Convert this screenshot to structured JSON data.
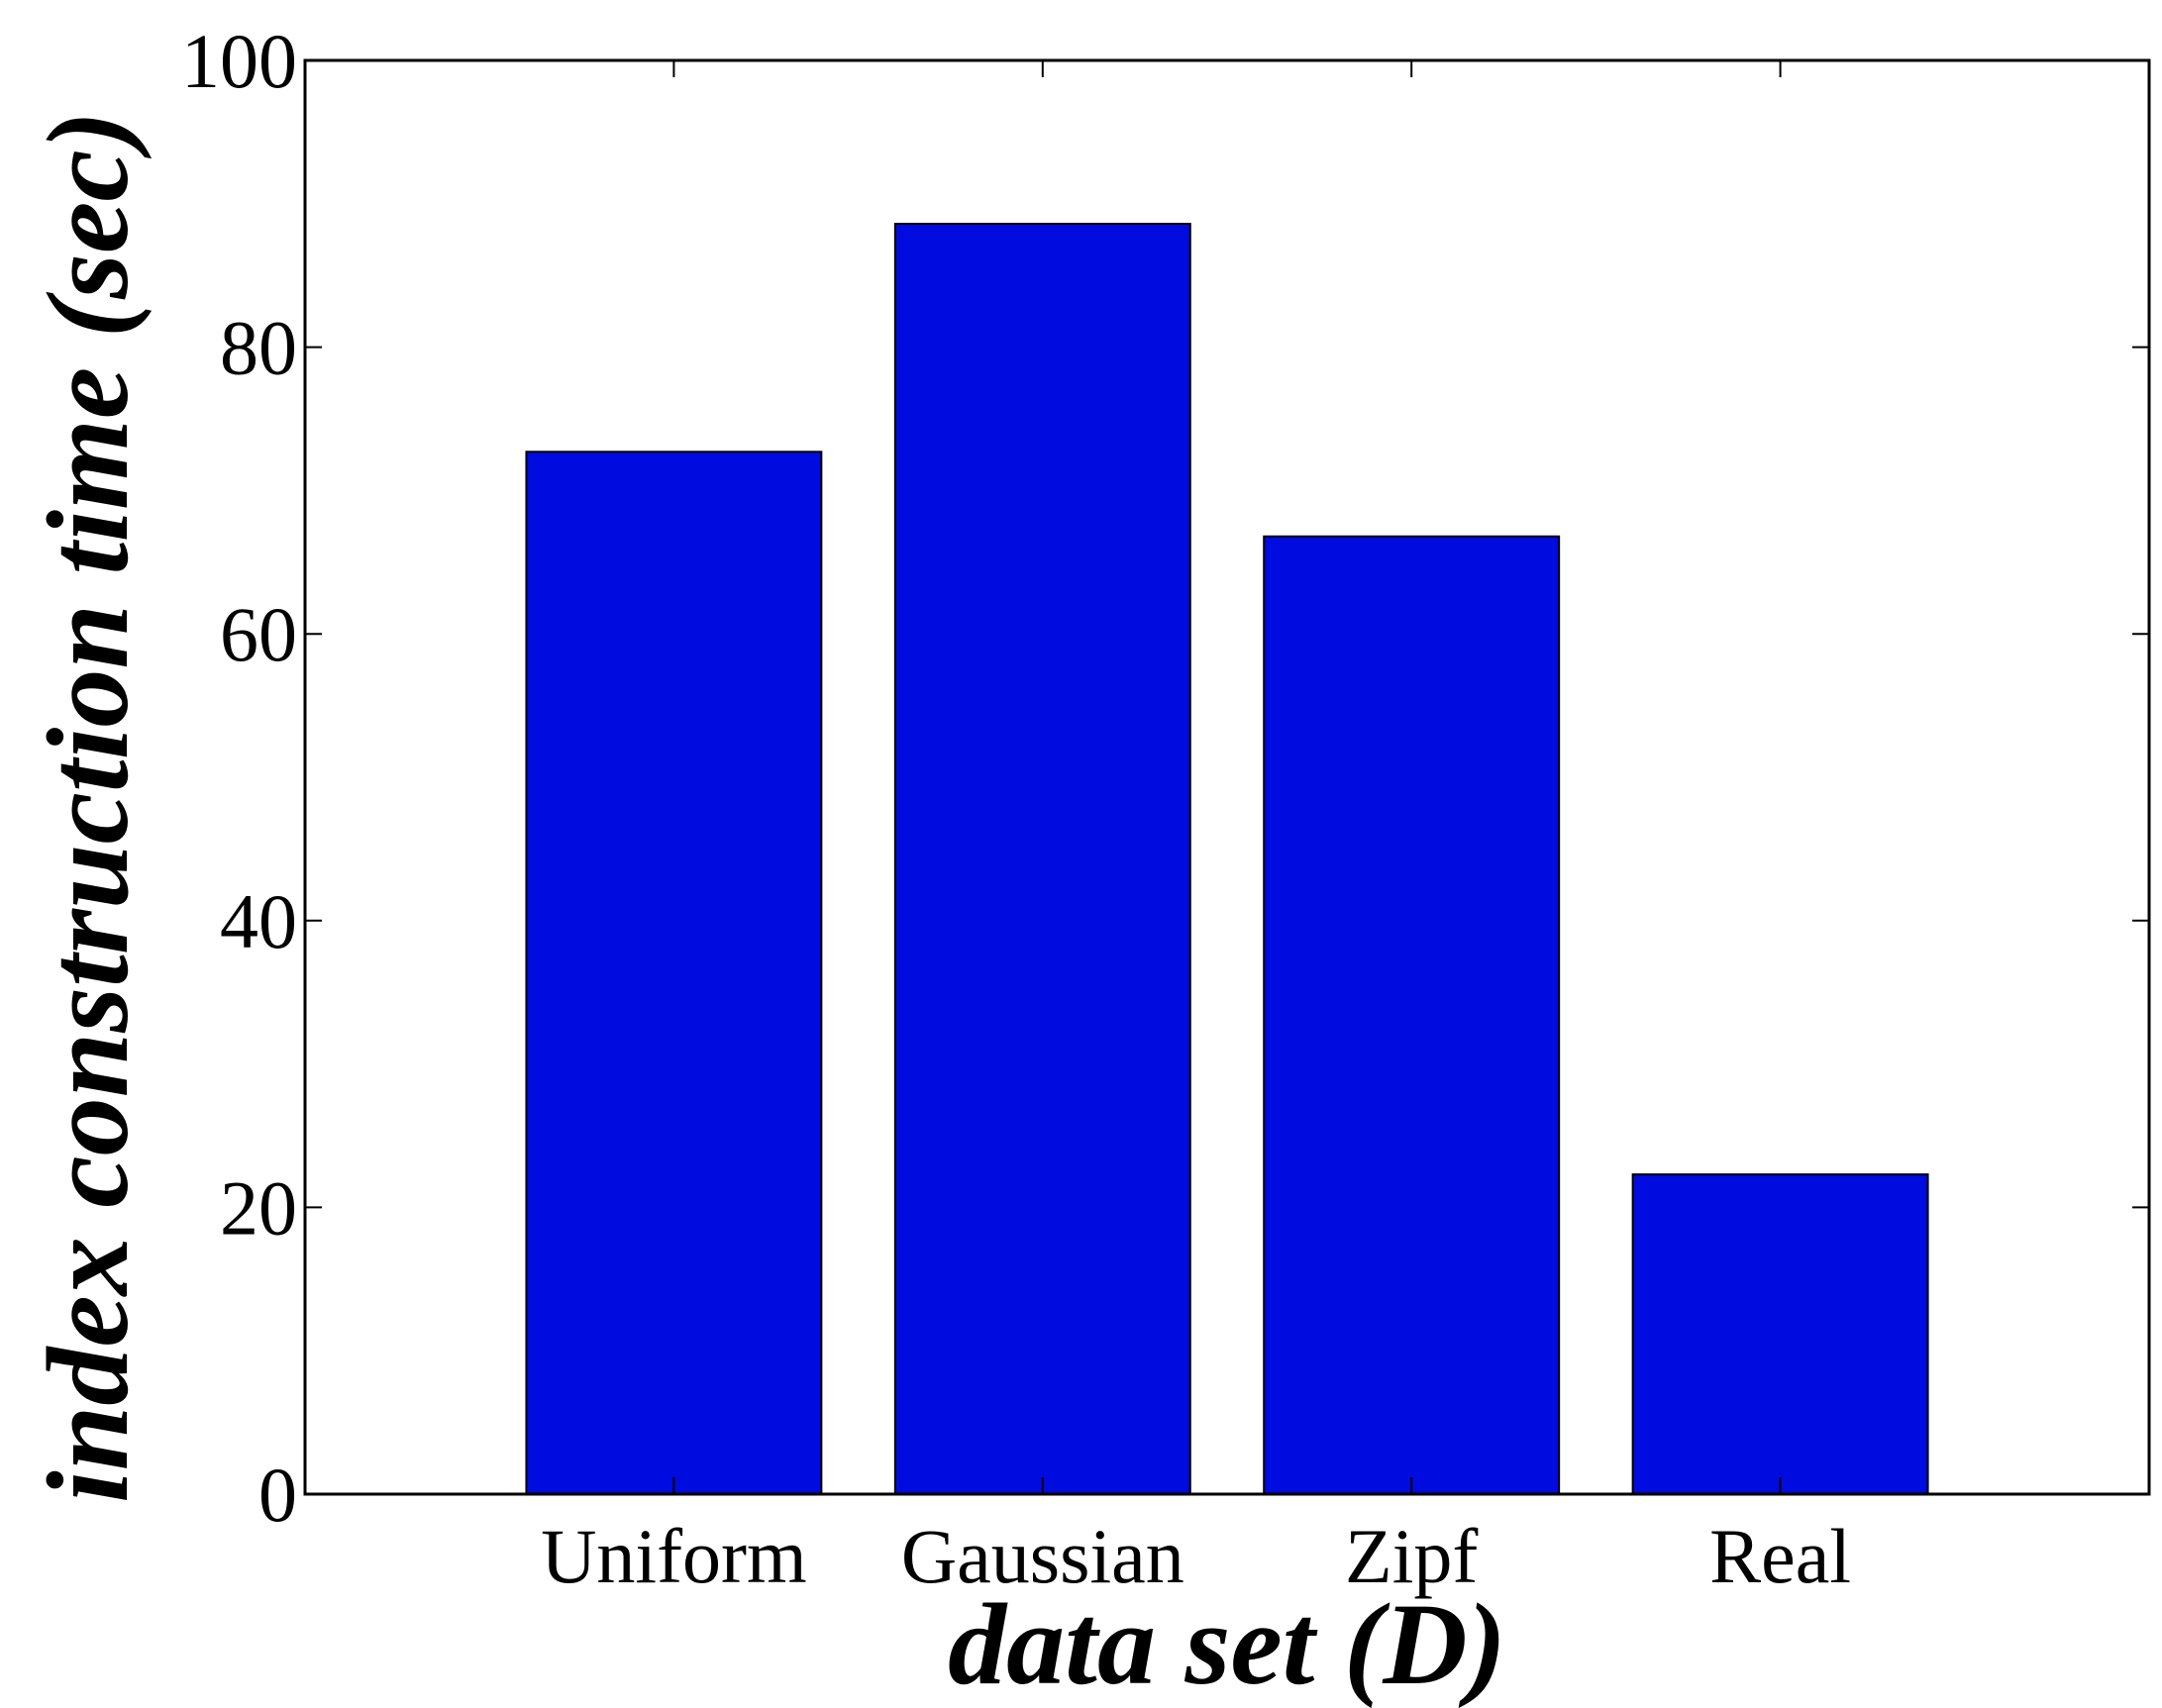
{
  "chart_data": {
    "type": "bar",
    "title": "",
    "xlabel": "data set (D)",
    "ylabel": "index construction time (sec)",
    "categories": [
      "Uniform",
      "Gaussian",
      "Zipf",
      "Real"
    ],
    "values": [
      72.7,
      88.6,
      66.8,
      22.3
    ],
    "ylim": [
      0,
      100
    ],
    "yticks": [
      "0",
      "20",
      "40",
      "60",
      "80",
      "100"
    ],
    "grid": false,
    "bar_color": "#000be0",
    "bar_edge_color": "#000000"
  }
}
